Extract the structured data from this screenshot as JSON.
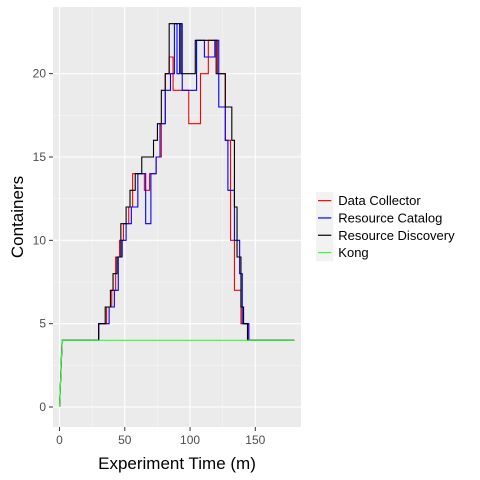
{
  "chart_data": {
    "type": "line",
    "title": "",
    "xlabel": "Experiment Time (m)",
    "ylabel": "Containers",
    "xlim": [
      -5,
      185
    ],
    "ylim": [
      -1.2,
      24
    ],
    "x_ticks": [
      0,
      50,
      100,
      150
    ],
    "y_ticks": [
      0,
      5,
      10,
      15,
      20
    ],
    "grid": true,
    "legend_position": "right",
    "series": [
      {
        "name": "Data Collector",
        "color": "#ff0000",
        "points": [
          [
            0,
            0
          ],
          [
            2,
            4
          ],
          [
            30,
            4
          ],
          [
            30,
            5
          ],
          [
            36,
            5
          ],
          [
            36,
            6
          ],
          [
            40,
            6
          ],
          [
            40,
            7
          ],
          [
            43,
            7
          ],
          [
            43,
            9
          ],
          [
            46,
            9
          ],
          [
            46,
            10
          ],
          [
            49,
            10
          ],
          [
            49,
            11
          ],
          [
            53,
            11
          ],
          [
            53,
            12
          ],
          [
            56,
            12
          ],
          [
            56,
            14
          ],
          [
            62,
            14
          ],
          [
            62,
            14
          ],
          [
            65,
            14
          ],
          [
            65,
            13
          ],
          [
            69,
            13
          ],
          [
            69,
            14
          ],
          [
            74,
            14
          ],
          [
            74,
            15
          ],
          [
            78,
            15
          ],
          [
            78,
            17
          ],
          [
            81,
            17
          ],
          [
            81,
            20
          ],
          [
            84,
            20
          ],
          [
            84,
            21
          ],
          [
            87,
            21
          ],
          [
            87,
            19
          ],
          [
            95,
            19
          ],
          [
            95,
            19
          ],
          [
            99,
            19
          ],
          [
            99,
            17
          ],
          [
            108,
            17
          ],
          [
            108,
            20
          ],
          [
            114,
            20
          ],
          [
            114,
            22
          ],
          [
            121,
            22
          ],
          [
            121,
            20
          ],
          [
            127,
            20
          ],
          [
            127,
            16
          ],
          [
            131,
            16
          ],
          [
            131,
            10
          ],
          [
            134,
            10
          ],
          [
            134,
            7
          ],
          [
            139,
            7
          ],
          [
            139,
            5
          ],
          [
            145,
            5
          ],
          [
            145,
            4
          ],
          [
            180,
            4
          ]
        ]
      },
      {
        "name": "Resource Catalog",
        "color": "#0000ff",
        "points": [
          [
            0,
            0
          ],
          [
            2,
            4
          ],
          [
            30,
            4
          ],
          [
            30,
            5
          ],
          [
            38,
            5
          ],
          [
            38,
            6
          ],
          [
            42,
            6
          ],
          [
            42,
            7
          ],
          [
            45,
            7
          ],
          [
            45,
            9
          ],
          [
            48,
            9
          ],
          [
            48,
            10
          ],
          [
            51,
            10
          ],
          [
            51,
            11
          ],
          [
            55,
            11
          ],
          [
            55,
            12
          ],
          [
            60,
            12
          ],
          [
            60,
            14
          ],
          [
            66,
            14
          ],
          [
            66,
            11
          ],
          [
            70,
            11
          ],
          [
            70,
            14
          ],
          [
            74,
            14
          ],
          [
            74,
            15
          ],
          [
            77,
            15
          ],
          [
            77,
            17
          ],
          [
            81,
            17
          ],
          [
            81,
            19
          ],
          [
            85,
            19
          ],
          [
            85,
            20
          ],
          [
            88,
            20
          ],
          [
            88,
            23
          ],
          [
            90,
            23
          ],
          [
            90,
            20
          ],
          [
            92,
            20
          ],
          [
            92,
            23
          ],
          [
            94,
            23
          ],
          [
            94,
            19
          ],
          [
            105,
            19
          ],
          [
            105,
            22
          ],
          [
            111,
            22
          ],
          [
            111,
            21
          ],
          [
            119,
            21
          ],
          [
            119,
            22
          ],
          [
            122,
            22
          ],
          [
            122,
            18
          ],
          [
            127,
            18
          ],
          [
            127,
            16
          ],
          [
            129,
            16
          ],
          [
            129,
            13
          ],
          [
            134,
            13
          ],
          [
            134,
            10
          ],
          [
            138,
            10
          ],
          [
            138,
            8
          ],
          [
            140,
            8
          ],
          [
            140,
            5
          ],
          [
            145,
            5
          ],
          [
            145,
            4
          ],
          [
            180,
            4
          ]
        ]
      },
      {
        "name": "Resource Discovery",
        "color": "#000000",
        "points": [
          [
            0,
            0
          ],
          [
            2,
            4
          ],
          [
            30,
            4
          ],
          [
            30,
            5
          ],
          [
            35,
            5
          ],
          [
            35,
            6
          ],
          [
            39,
            6
          ],
          [
            39,
            7
          ],
          [
            41,
            7
          ],
          [
            41,
            8
          ],
          [
            44,
            8
          ],
          [
            44,
            9
          ],
          [
            47,
            9
          ],
          [
            47,
            11
          ],
          [
            51,
            11
          ],
          [
            51,
            12
          ],
          [
            54,
            12
          ],
          [
            54,
            13
          ],
          [
            58,
            13
          ],
          [
            58,
            14
          ],
          [
            63,
            14
          ],
          [
            63,
            15
          ],
          [
            72,
            15
          ],
          [
            72,
            16
          ],
          [
            75,
            16
          ],
          [
            75,
            17
          ],
          [
            78,
            17
          ],
          [
            78,
            19
          ],
          [
            81,
            19
          ],
          [
            81,
            20
          ],
          [
            84,
            20
          ],
          [
            84,
            23
          ],
          [
            93,
            23
          ],
          [
            93,
            20
          ],
          [
            104,
            20
          ],
          [
            104,
            22
          ],
          [
            120,
            22
          ],
          [
            120,
            20
          ],
          [
            127,
            20
          ],
          [
            127,
            18
          ],
          [
            132,
            18
          ],
          [
            132,
            16
          ],
          [
            134,
            16
          ],
          [
            134,
            12
          ],
          [
            136,
            12
          ],
          [
            136,
            9
          ],
          [
            139,
            9
          ],
          [
            139,
            6
          ],
          [
            141,
            6
          ],
          [
            141,
            5
          ],
          [
            144,
            5
          ],
          [
            144,
            4
          ],
          [
            180,
            4
          ]
        ]
      },
      {
        "name": "Kong",
        "color": "#33ff33",
        "points": [
          [
            0,
            0
          ],
          [
            2,
            4
          ],
          [
            180,
            4
          ]
        ]
      }
    ]
  }
}
